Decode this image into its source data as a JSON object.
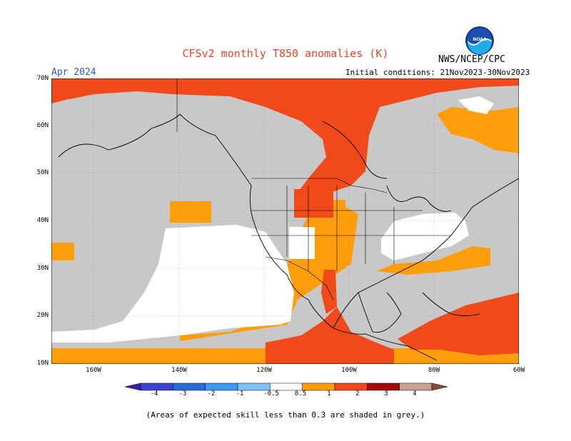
{
  "title": "CFSv2 monthly T850 anomalies (K)",
  "valid_month": "Apr 2024",
  "agency": "NWS/NCEP/CPC",
  "initial_conditions": "Initial conditions: 21Nov2023-30Nov2023",
  "footnote": "(Areas of expected skill less than 0.3 are shaded in grey.)",
  "latitude_labels": [
    "70N",
    "60N",
    "50N",
    "40N",
    "30N",
    "20N",
    "10N"
  ],
  "longitude_labels": [
    "160W",
    "140W",
    "120W",
    "100W",
    "80W",
    "60W"
  ],
  "colorbar": {
    "labels": [
      "-4",
      "-3",
      "-2",
      "-1",
      "-0.5",
      "0.5",
      "1",
      "2",
      "3",
      "4"
    ],
    "colors": [
      "#3a1fa6",
      "#3c46cc",
      "#2a6ad8",
      "#3d9cf0",
      "#7ec0f8",
      "#ffffff",
      "#ff9e0a",
      "#f0491a",
      "#a30808",
      "#c8a090",
      "#8a4a3a"
    ]
  },
  "shading_colors": {
    "skill_grey": "#c8c8c8",
    "anom_0_5_to_1": "#ff9e0a",
    "anom_1_to_2": "#f0491a",
    "near_zero": "#ffffff"
  },
  "icons": {
    "logo": "noaa-logo"
  }
}
